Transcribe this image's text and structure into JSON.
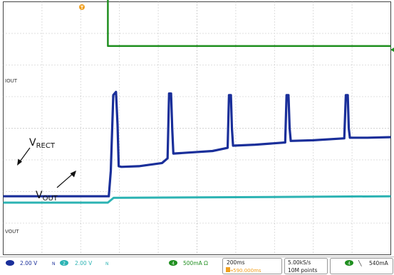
{
  "chart_data": {
    "type": "line",
    "title": "",
    "x_unit": "ms",
    "x_range": [
      0,
      2000
    ],
    "grid": true,
    "trigger_marker": "T",
    "series": [
      {
        "name": "IOUT",
        "color": "#1f8f1f",
        "points": [
          [
            0,
            6.2
          ],
          [
            540,
            6.2
          ],
          [
            540,
            2.6
          ],
          [
            2000,
            2.6
          ]
        ]
      },
      {
        "name": "VRECT",
        "color": "#1a2f9a",
        "points": [
          [
            0,
            -2.15
          ],
          [
            545,
            -2.15
          ],
          [
            555,
            -1.35
          ],
          [
            568,
            1.05
          ],
          [
            582,
            1.15
          ],
          [
            590,
            0.1
          ],
          [
            596,
            -1.2
          ],
          [
            610,
            -1.22
          ],
          [
            700,
            -1.2
          ],
          [
            820,
            -1.1
          ],
          [
            848,
            -0.95
          ],
          [
            856,
            1.1
          ],
          [
            866,
            1.1
          ],
          [
            872,
            0.0
          ],
          [
            878,
            -0.8
          ],
          [
            930,
            -0.78
          ],
          [
            1080,
            -0.72
          ],
          [
            1158,
            -0.62
          ],
          [
            1165,
            1.05
          ],
          [
            1175,
            1.05
          ],
          [
            1180,
            0.0
          ],
          [
            1186,
            -0.55
          ],
          [
            1300,
            -0.52
          ],
          [
            1455,
            -0.45
          ],
          [
            1462,
            1.05
          ],
          [
            1472,
            1.05
          ],
          [
            1478,
            0.0
          ],
          [
            1484,
            -0.4
          ],
          [
            1600,
            -0.38
          ],
          [
            1760,
            -0.32
          ],
          [
            1768,
            1.05
          ],
          [
            1778,
            1.05
          ],
          [
            1783,
            0.0
          ],
          [
            1789,
            -0.3
          ],
          [
            1880,
            -0.3
          ],
          [
            2000,
            -0.28
          ]
        ]
      },
      {
        "name": "VOUT",
        "color": "#2cb3b3",
        "points": [
          [
            0,
            -2.35
          ],
          [
            540,
            -2.35
          ],
          [
            570,
            -2.2
          ],
          [
            1200,
            -2.18
          ],
          [
            2000,
            -2.15
          ]
        ]
      }
    ],
    "trace_labels": [
      "IOUT",
      "VOUT"
    ],
    "annotations": [
      {
        "base": "V",
        "sub": "RECT"
      },
      {
        "base": "V",
        "sub": "OUT"
      }
    ],
    "status_bar": {
      "ch1_scale": "2.00 V",
      "ch1_mark": "N",
      "ch2_num": "2",
      "ch2_scale": "2.00 V",
      "ch2_mark": "N",
      "ch4_num": "4",
      "ch4_scale": "500mA Ω",
      "timebase": "200ms",
      "trigger_pos": "T→590.000ms",
      "sample_rate": "5.00kS/s",
      "record_length": "10M points",
      "trig_ch": "4",
      "trig_slope": "╲",
      "trig_level": "540mA"
    }
  }
}
